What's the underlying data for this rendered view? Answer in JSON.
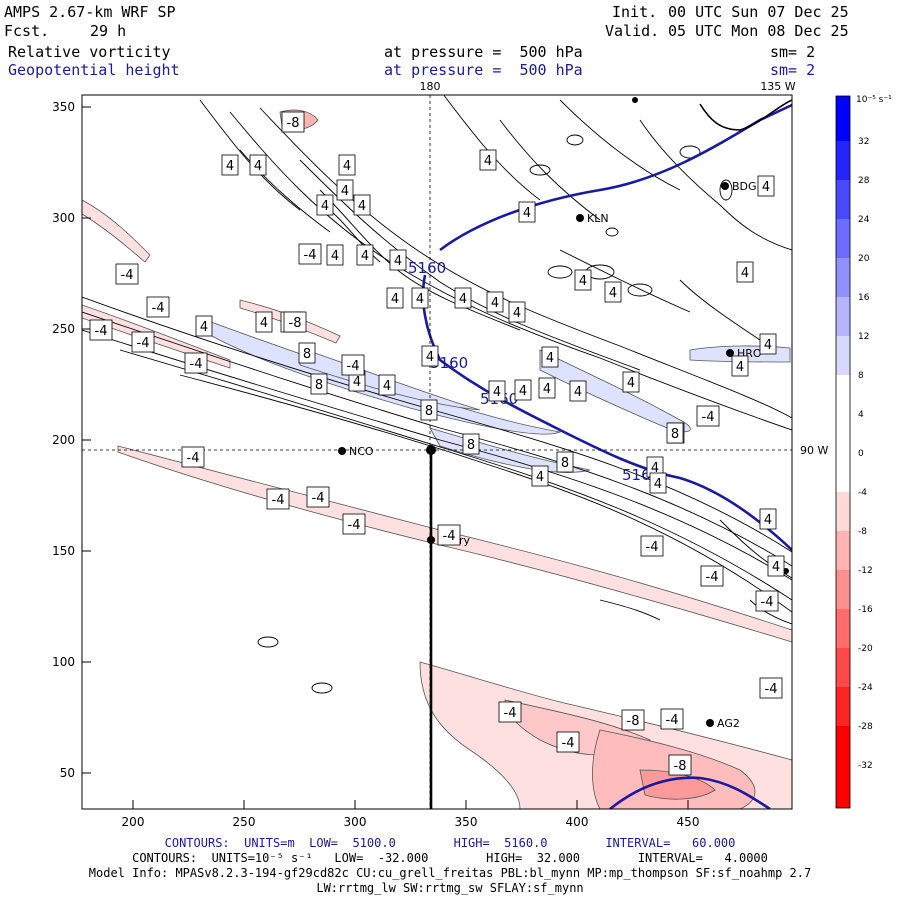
{
  "header": {
    "model_title": "AMPS 2.67-km WRF SP",
    "forecast_label": "Fcst.",
    "forecast_value": "29 h",
    "init_label": "Init.",
    "init_value": "00 UTC Sun 07 Dec 25",
    "valid_label": "Valid.",
    "valid_value": "05 UTC Mon 08 Dec 25",
    "field1_name": "Relative vorticity",
    "field1_level": "at pressure =  500 hPa",
    "field1_sm": "sm= 2",
    "field2_name": "Geopotential height",
    "field2_level": "at pressure =  500 hPa",
    "field2_sm": "sm= 2"
  },
  "map_labels": {
    "top_180": "180",
    "top_135w": "135 W",
    "right_90w": "90 W"
  },
  "axes": {
    "x_ticks": [
      "200",
      "250",
      "300",
      "350",
      "400",
      "450"
    ],
    "y_ticks": [
      "350",
      "300",
      "250",
      "200",
      "150",
      "100",
      "50"
    ]
  },
  "stations": [
    {
      "name": "KLN"
    },
    {
      "name": "HRO"
    },
    {
      "name": "NCO"
    },
    {
      "name": "Henry"
    },
    {
      "name": "AG2"
    },
    {
      "name": "BDG"
    }
  ],
  "height_contour_labels": [
    "5160",
    "5160",
    "5160",
    "5160"
  ],
  "vorticity_contour_labels": [
    "4",
    "-4",
    "8",
    "-8"
  ],
  "colorbar": {
    "unit": "10⁻⁵ s⁻¹",
    "levels": [
      "32",
      "28",
      "24",
      "20",
      "16",
      "12",
      "8",
      "4",
      "0",
      "-4",
      "-8",
      "-12",
      "-16",
      "-20",
      "-24",
      "-28",
      "-32"
    ],
    "positive_colors": [
      "#0000ff",
      "#2424ff",
      "#4848ff",
      "#6c6cff",
      "#9090ff",
      "#b4b4ff",
      "#d8d8ff",
      "#ffffff"
    ],
    "negative_colors": [
      "#ffffff",
      "#ffd8d8",
      "#ffb4b4",
      "#ff9090",
      "#ff6c6c",
      "#ff4848",
      "#ff2424",
      "#ff0000"
    ]
  },
  "footer": {
    "line1": "CONTOURS:  UNITS=m  LOW=  5100.0        HIGH=  5160.0        INTERVAL=   60.000",
    "line2": "CONTOURS:  UNITS=10⁻⁵ s⁻¹   LOW=  -32.000        HIGH=  32.000        INTERVAL=   4.0000",
    "line3": "Model Info: MPASv8.2.3-194-gf29cd82c CU:cu_grell_freitas PBL:bl_mynn MP:mp_thompson SF:sf_noahmp 2.7",
    "line4": "LW:rrtmg_lw SW:rrtmg_sw SFLAY:sf_mynn"
  }
}
